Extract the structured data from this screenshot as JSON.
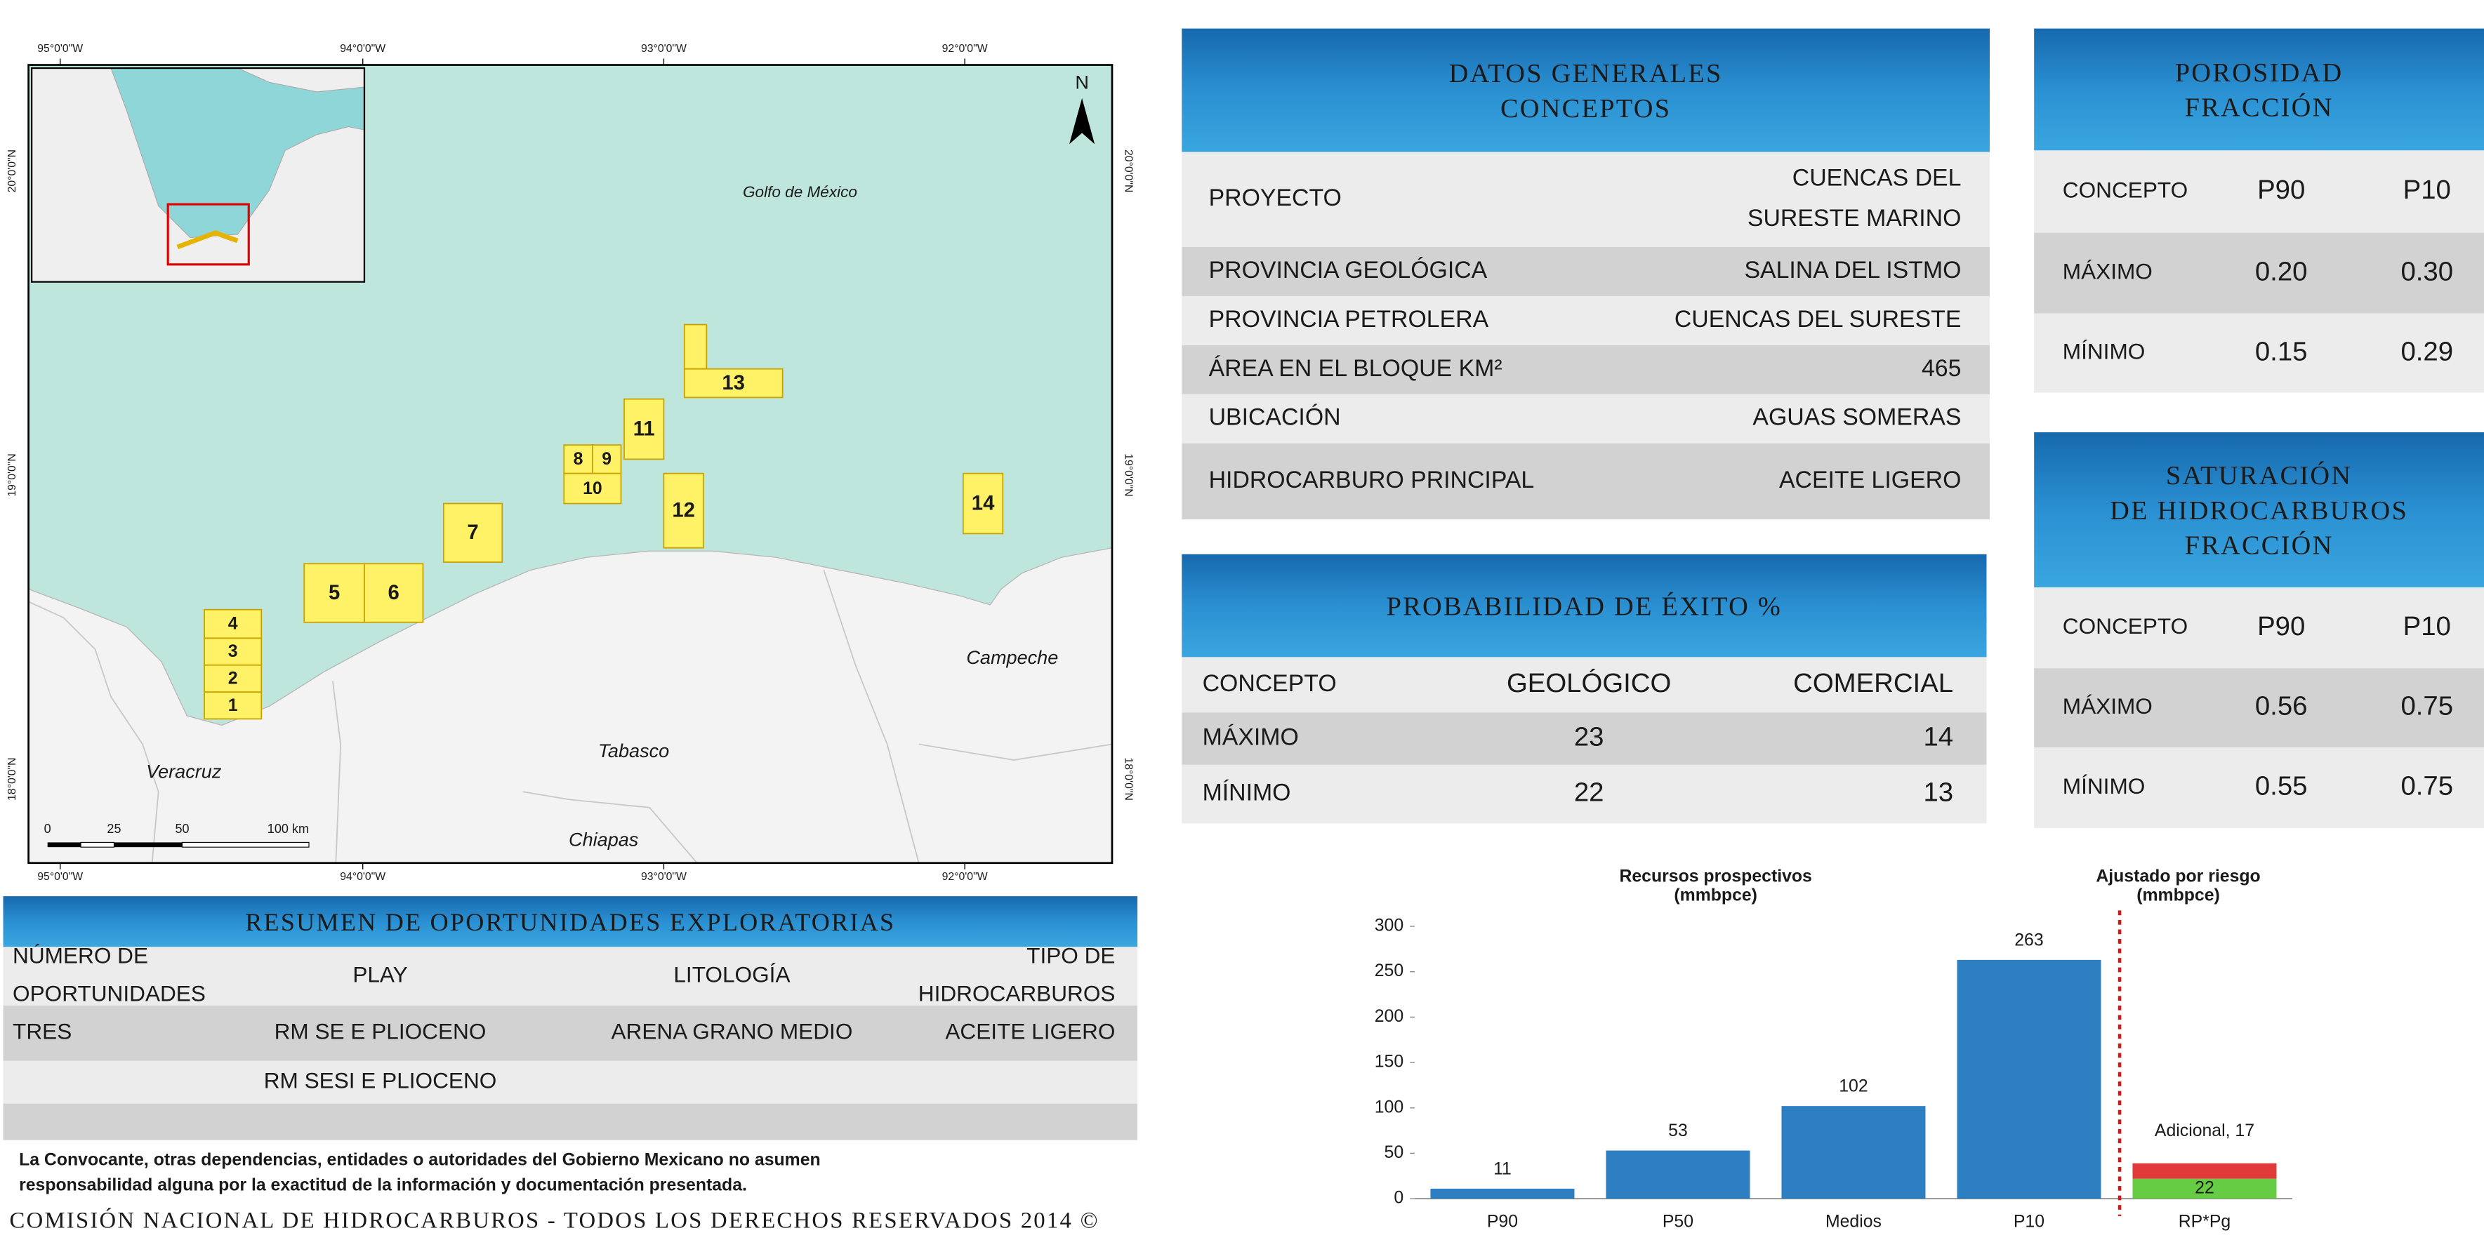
{
  "map": {
    "lon_labels": [
      "95°0'0\"W",
      "94°0'0\"W",
      "93°0'0\"W",
      "92°0'0\"W"
    ],
    "lat_labels": [
      "20°0'0\"N",
      "19°0'0\"N",
      "18°0'0\"N"
    ],
    "places": [
      "Golfo de México",
      "Campeche",
      "Tabasco",
      "Veracruz",
      "Chiapas"
    ],
    "blocks": [
      "1",
      "2",
      "3",
      "4",
      "5",
      "6",
      "7",
      "8",
      "9",
      "10",
      "11",
      "12",
      "13",
      "14"
    ],
    "north": "N",
    "scale": [
      "0",
      "25",
      "50",
      "100 km"
    ]
  },
  "datos_generales": {
    "title": [
      "DATOS GENERALES",
      "CONCEPTOS"
    ],
    "rows": [
      [
        "PROYECTO",
        [
          "CUENCAS DEL",
          "SURESTE MARINO"
        ]
      ],
      [
        "PROVINCIA GEOLÓGICA",
        "SALINA DEL ISTMO"
      ],
      [
        "PROVINCIA PETROLERA",
        "CUENCAS DEL SURESTE"
      ],
      [
        "ÁREA EN EL BLOQUE KM²",
        "465"
      ],
      [
        "UBICACIÓN",
        "AGUAS SOMERAS"
      ],
      [
        "HIDROCARBURO PRINCIPAL",
        "ACEITE LIGERO"
      ]
    ]
  },
  "porosidad": {
    "title": [
      "POROSIDAD",
      "FRACCIÓN"
    ],
    "header": [
      "CONCEPTO",
      "P90",
      "P10"
    ],
    "rows": [
      [
        "MÁXIMO",
        "0.20",
        "0.30"
      ],
      [
        "MÍNIMO",
        "0.15",
        "0.29"
      ]
    ]
  },
  "saturacion": {
    "title": [
      "SATURACIÓN",
      "DE HIDROCARBUROS",
      "FRACCIÓN"
    ],
    "header": [
      "CONCEPTO",
      "P90",
      "P10"
    ],
    "rows": [
      [
        "MÁXIMO",
        "0.56",
        "0.75"
      ],
      [
        "MÍNIMO",
        "0.55",
        "0.75"
      ]
    ]
  },
  "probabilidad": {
    "title": [
      "PROBABILIDAD DE ÉXITO %"
    ],
    "header": [
      "CONCEPTO",
      "GEOLÓGICO",
      "COMERCIAL"
    ],
    "rows": [
      [
        "MÁXIMO",
        "23",
        "14"
      ],
      [
        "MÍNIMO",
        "22",
        "13"
      ]
    ]
  },
  "resumen": {
    "title": [
      "RESUMEN DE OPORTUNIDADES EXPLORATORIAS"
    ],
    "header": [
      [
        "NÚMERO DE",
        "OPORTUNIDADES"
      ],
      "PLAY",
      "LITOLOGÍA",
      [
        "TIPO DE",
        "HIDROCARBUROS"
      ]
    ],
    "rows": [
      [
        "TRES",
        "RM SE E PLIOCENO",
        "ARENA GRANO MEDIO",
        "ACEITE LIGERO"
      ],
      [
        null,
        "RM SESI E PLIOCENO",
        null,
        null
      ]
    ]
  },
  "disclaimer": [
    "La Convocante, otras dependencias, entidades o autoridades del Gobierno Mexicano no asumen",
    "responsabilidad alguna por la exactitud de la información y documentación presentada."
  ],
  "footer": "COMISIÓN NACIONAL DE HIDROCARBUROS - TODOS LOS DERECHOS RESERVADOS 2014 ©",
  "chart_data": {
    "type": "bar",
    "annotations": [
      [
        "Recursos prospectivos",
        "(mmbpce)"
      ],
      [
        "Ajustado por riesgo",
        "(mmbpce)"
      ]
    ],
    "categories": [
      "P90",
      "P50",
      "Medios",
      "P10",
      "RP*Pg"
    ],
    "series": [
      {
        "color": "#2e7fc2",
        "values": [
          11,
          53,
          102,
          263,
          null
        ]
      },
      {
        "color": "#66cc44",
        "values": [
          null,
          null,
          null,
          null,
          22
        ]
      },
      {
        "color": "#e03a3a",
        "values": [
          null,
          null,
          null,
          null,
          17
        ],
        "value_labels": [
          null,
          null,
          null,
          null,
          "Adicional, 17"
        ]
      }
    ],
    "ylim": [
      0,
      300
    ],
    "yticks": [
      0,
      50,
      100,
      150,
      200,
      250,
      300
    ],
    "grid": false
  }
}
